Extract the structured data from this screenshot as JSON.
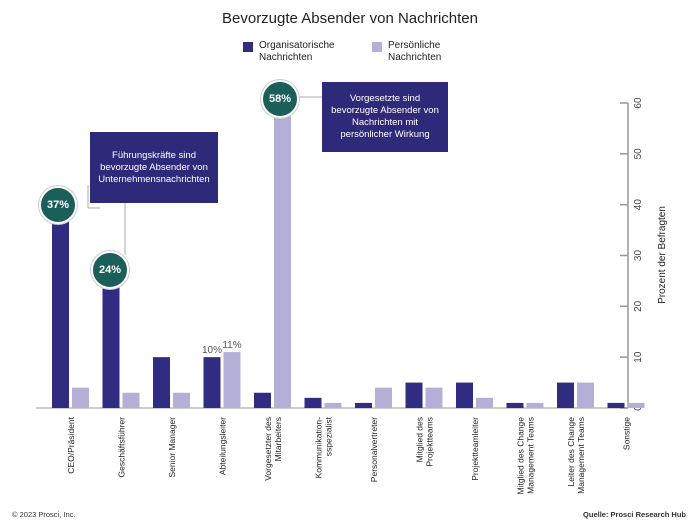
{
  "chart_data": {
    "type": "bar",
    "title": "Bevorzugte Absender von Nachrichten",
    "ylabel": "Prozent der Befragten",
    "ylim": [
      0,
      60
    ],
    "yticks": [
      0,
      10,
      20,
      30,
      40,
      50,
      60
    ],
    "categories": [
      "CEO/Präsident",
      "Geschäftsführer",
      "Senior Manager",
      "Abteilungsleiter",
      "Vorgesetzter des Mitarbeiters",
      "Kommunikation-sspezialist",
      "Personalvertreter",
      "Mitglied des Projektteams",
      "Projektteamleiter",
      "Mitglied des Change Management Teams",
      "Leiter des Change Management Teams",
      "Sonstige"
    ],
    "series": [
      {
        "name": "Organisatorische Nachrichten",
        "color": "#302c82",
        "values": [
          37,
          24,
          10,
          10,
          3,
          2,
          1,
          5,
          5,
          1,
          5,
          1
        ]
      },
      {
        "name": "Persönliche Nachrichten",
        "color": "#b3afd6",
        "values": [
          4,
          3,
          3,
          11,
          58,
          1,
          4,
          4,
          2,
          1,
          5,
          1
        ]
      }
    ],
    "data_labels": {
      "abteilung_org": "10%",
      "abteilung_pers": "11%"
    },
    "badges": {
      "ceo": "37%",
      "gf": "24%",
      "vorg": "58%"
    },
    "annotations": {
      "leaders": "Führungskräfte sind bevorzugte Absender von Unternehmensnachrichten",
      "supervisors": "Vorgesetzte sind bevorzugte Absender von Nachrichten mit persönlicher Wirkung"
    },
    "legend_position": "top-center"
  },
  "footer": {
    "copyright": "© 2023 Prosci, Inc.",
    "source": "Quelle: Prosci Research Hub"
  }
}
